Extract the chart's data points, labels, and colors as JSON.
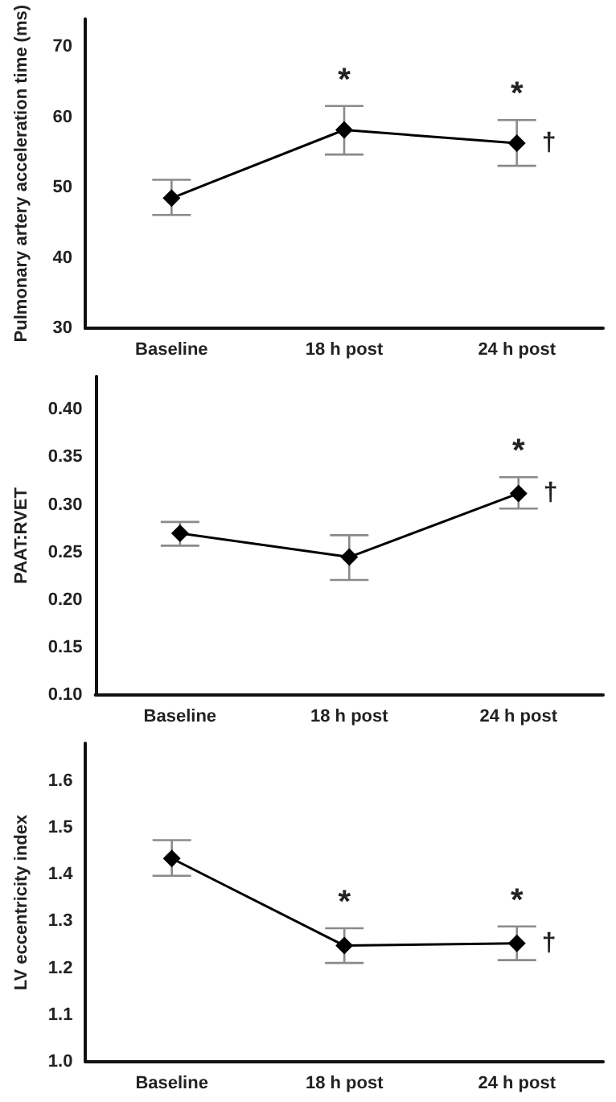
{
  "chart_data": [
    {
      "type": "line",
      "ylabel": "Pulmonary artery acceleration time (ms)",
      "categories": [
        "Baseline",
        "18 h post",
        "24 h post"
      ],
      "series": [
        {
          "color": "#000000",
          "values": [
            48.5,
            58.2,
            56.3
          ],
          "errors": [
            [
              46.1,
              51.1
            ],
            [
              54.7,
              61.6
            ],
            [
              53.1,
              59.6
            ]
          ]
        }
      ],
      "ylim": [
        30,
        74
      ],
      "yticks": [
        30,
        40,
        50,
        60,
        70
      ],
      "grid": false,
      "marker": "diamond",
      "line_style": "solid",
      "annotations": [
        {
          "text": "*",
          "x": "18 h post",
          "y": 61.6
        },
        {
          "text": "*",
          "x": "24 h post",
          "y": 59.6
        },
        {
          "text": "†",
          "x": "24 h post",
          "y": 56.3
        }
      ]
    },
    {
      "type": "line",
      "ylabel": "PAAT:RVET",
      "categories": [
        "Baseline",
        "18 h post",
        "24 h post"
      ],
      "series": [
        {
          "color": "#000000",
          "values": [
            0.27,
            0.245,
            0.312
          ],
          "errors": [
            [
              0.257,
              0.282
            ],
            [
              0.221,
              0.268
            ],
            [
              0.296,
              0.329
            ]
          ]
        }
      ],
      "ylim": [
        0.1,
        0.435
      ],
      "yticks": [
        {
          "value": 0.1,
          "label": "0.10"
        },
        {
          "value": 0.15,
          "label": "0.15"
        },
        {
          "value": 0.2,
          "label": "0.20"
        },
        {
          "value": 0.25,
          "label": "0.25"
        },
        {
          "value": 0.3,
          "label": "0.30"
        },
        {
          "value": 0.35,
          "label": "0.35"
        },
        {
          "value": 0.4,
          "label": "0.40"
        }
      ],
      "grid": false,
      "marker": "diamond",
      "line_style": "solid",
      "annotations": [
        {
          "text": "*",
          "x": "24 h post",
          "y": 0.329
        },
        {
          "text": "†",
          "x": "24 h post",
          "y": 0.312
        }
      ]
    },
    {
      "type": "line",
      "ylabel": "LV eccentricity index",
      "categories": [
        "Baseline",
        "18 h post",
        "24 h post"
      ],
      "series": [
        {
          "color": "#000000",
          "values": [
            1.434,
            1.248,
            1.253
          ],
          "errors": [
            [
              1.397,
              1.473
            ],
            [
              1.211,
              1.285
            ],
            [
              1.217,
              1.289
            ]
          ]
        }
      ],
      "ylim": [
        1.0,
        1.68
      ],
      "yticks": [
        {
          "value": 1.0,
          "label": "1.0"
        },
        1.1,
        1.2,
        1.3,
        1.4,
        1.5,
        1.6
      ],
      "grid": false,
      "marker": "diamond",
      "line_style": "solid",
      "annotations": [
        {
          "text": "*",
          "x": "18 h post",
          "y": 1.285
        },
        {
          "text": "*",
          "x": "24 h post",
          "y": 1.289
        },
        {
          "text": "†",
          "x": "24 h post",
          "y": 1.253
        }
      ]
    }
  ]
}
